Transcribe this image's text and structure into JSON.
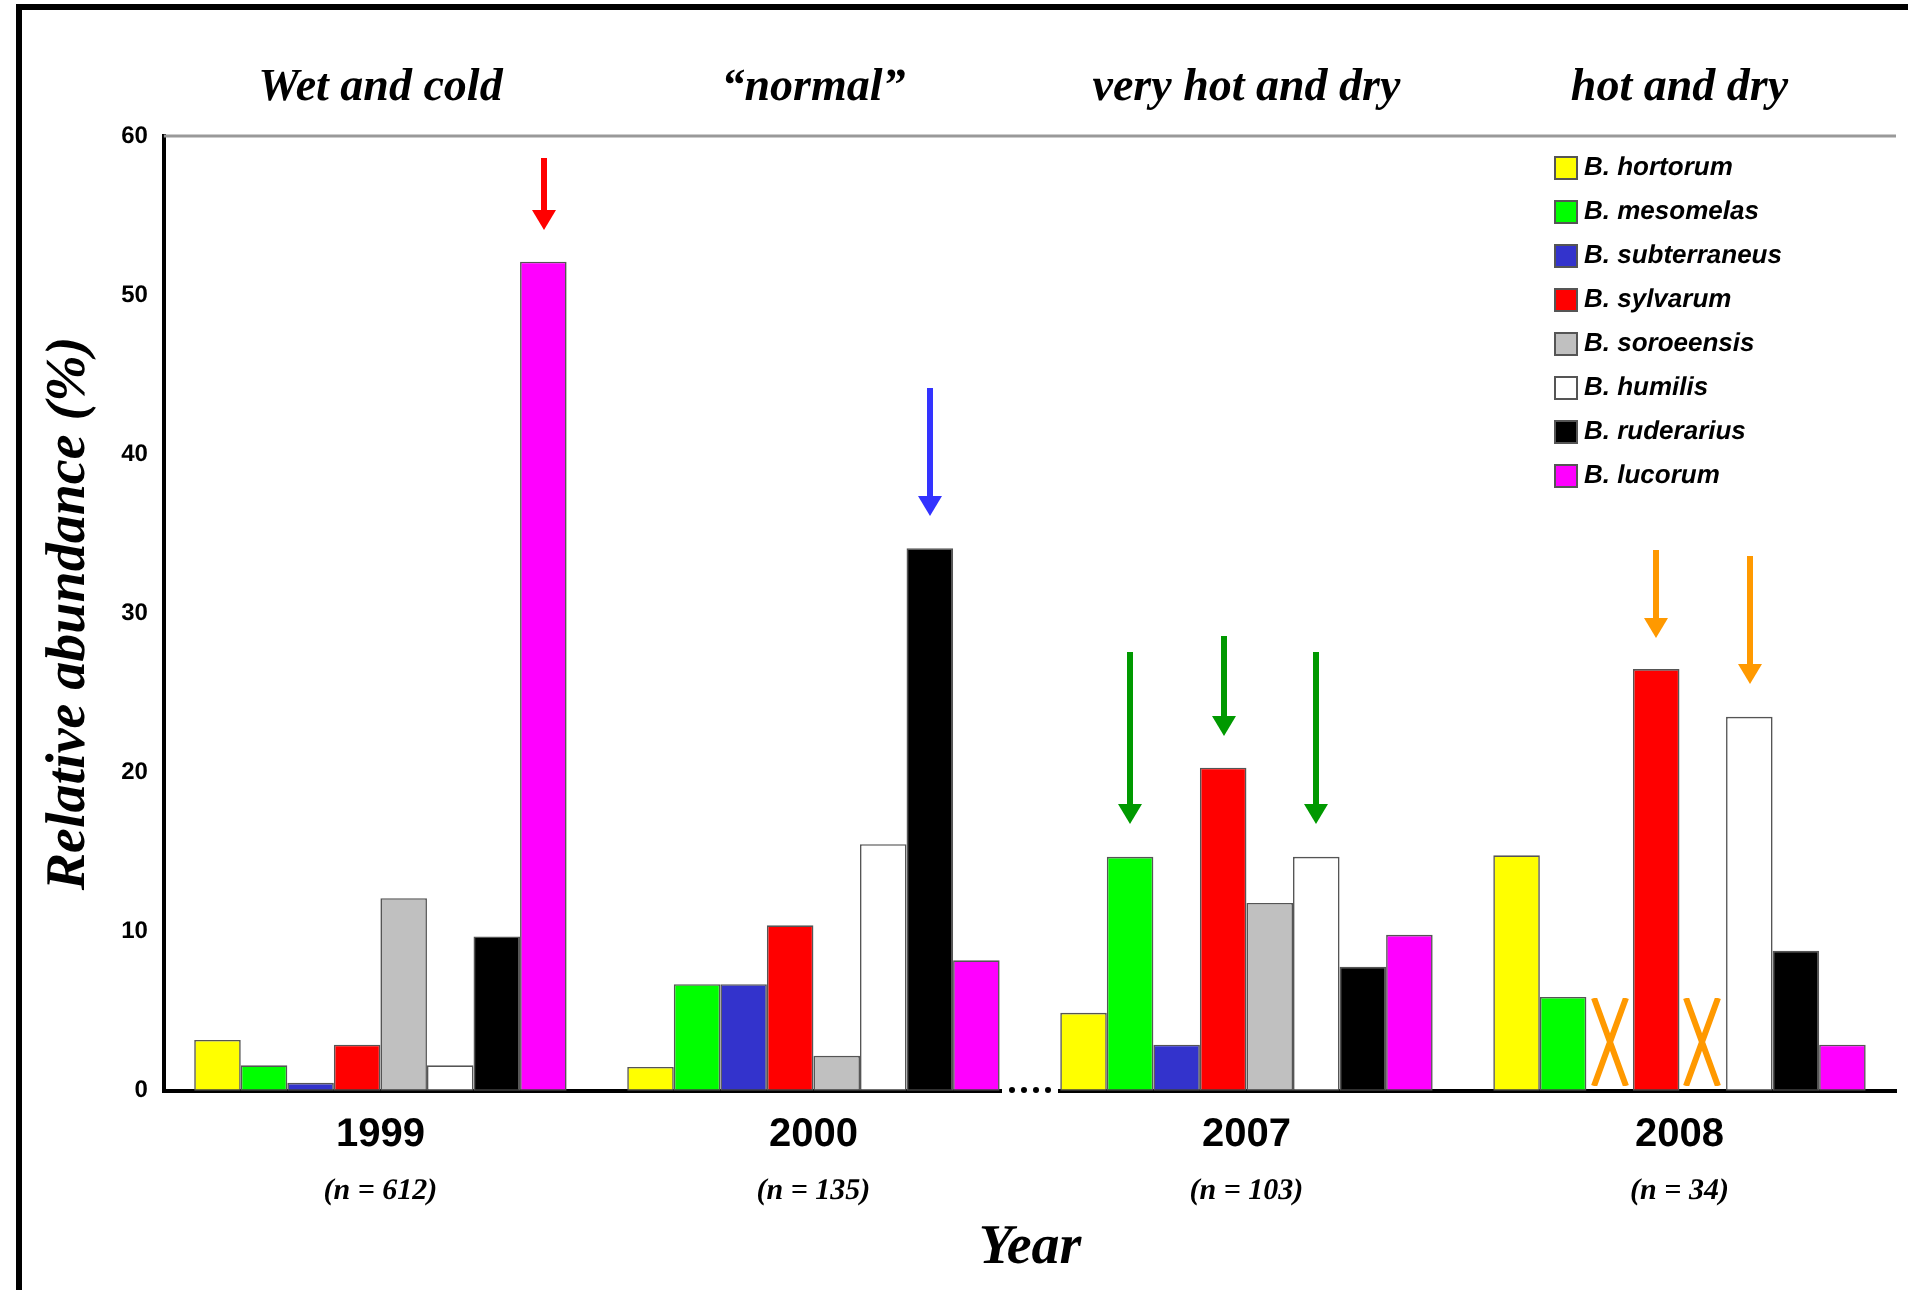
{
  "chart_data": {
    "type": "bar",
    "xlabel": "Year",
    "ylabel": "Relative abundance (%)",
    "categories": [
      "1999",
      "2000",
      "2007",
      "2008"
    ],
    "series": [
      {
        "name": "B. hortorum",
        "color": "#ffff00",
        "values": [
          3.2,
          1.5,
          4.9,
          14.8
        ]
      },
      {
        "name": "B. mesomelas",
        "color": "#00ff00",
        "values": [
          1.6,
          6.7,
          14.7,
          5.9
        ]
      },
      {
        "name": "B. subterraneus",
        "color": "#3333cc",
        "values": [
          0.5,
          6.7,
          2.9,
          0
        ]
      },
      {
        "name": "B. sylvarum",
        "color": "#ff0000",
        "values": [
          2.9,
          10.4,
          20.3,
          26.5
        ]
      },
      {
        "name": "B. soroeensis",
        "color": "#c0c0c0",
        "values": [
          12.1,
          2.2,
          11.8,
          0
        ]
      },
      {
        "name": "B. humilis",
        "color": "#ffffff",
        "values": [
          1.6,
          15.5,
          14.7,
          23.5
        ]
      },
      {
        "name": "B. ruderarius",
        "color": "#000000",
        "values": [
          9.7,
          34.1,
          7.8,
          8.8
        ]
      },
      {
        "name": "B. lucorum",
        "color": "#ff00ff",
        "values": [
          52.1,
          8.2,
          9.8,
          2.9
        ]
      }
    ],
    "ylim": [
      0,
      60
    ],
    "yticks": [
      0,
      10,
      20,
      30,
      40,
      50,
      60
    ],
    "grid": false,
    "legend": "top right",
    "annotations": [
      "Wet and cold",
      "“normal”",
      "very hot and dry",
      "hot and dry",
      "(n = 612)",
      "(n = 135)",
      "(n = 103)",
      "(n = 34)"
    ]
  }
}
